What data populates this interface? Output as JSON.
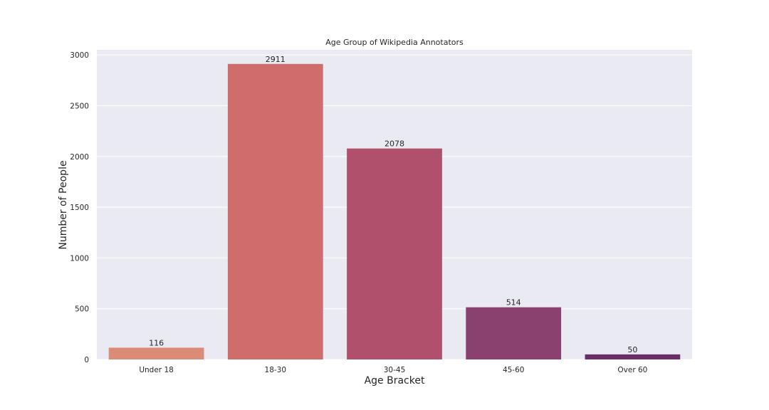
{
  "chart_data": {
    "type": "bar",
    "title": "Age Group of Wikipedia Annotators",
    "xlabel": "Age Bracket",
    "ylabel": "Number of People",
    "categories": [
      "Under 18",
      "18-30",
      "30-45",
      "45-60",
      "Over 60"
    ],
    "values": [
      116,
      2911,
      2078,
      514,
      50
    ],
    "data_labels": [
      "116",
      "2911",
      "2078",
      "514",
      "50"
    ],
    "ylim": [
      0,
      3050
    ],
    "yticks": [
      0,
      500,
      1000,
      1500,
      2000,
      2500,
      3000
    ],
    "ytick_labels": [
      "0",
      "500",
      "1000",
      "1500",
      "2000",
      "2500",
      "3000"
    ],
    "grid": true,
    "legend": "none",
    "colors": {
      "background": "#EAEAF2",
      "grid": "#FFFFFF",
      "bars": [
        "#DB8C77",
        "#CF6C6C",
        "#B0506D",
        "#8A4170",
        "#6B2F67"
      ]
    }
  }
}
